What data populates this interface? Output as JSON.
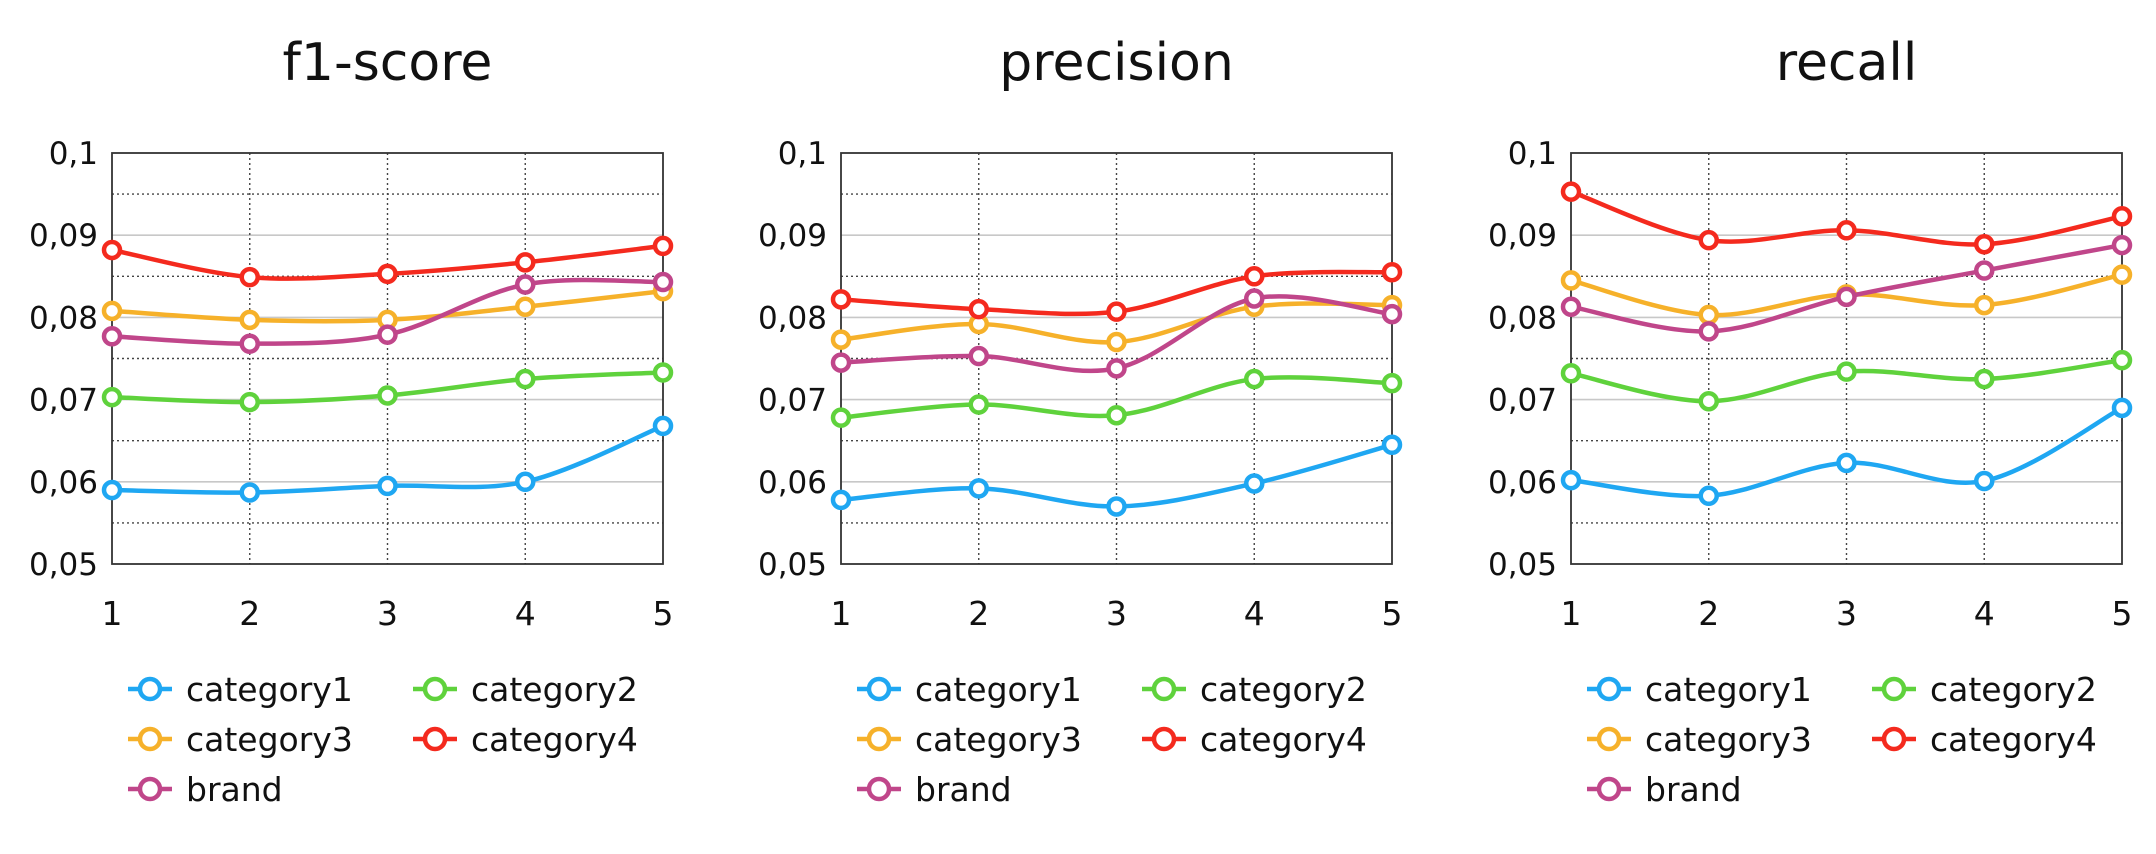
{
  "chart_data": [
    {
      "type": "line",
      "title": "f1-score",
      "xlabel": "",
      "ylabel": "",
      "x": [
        1,
        2,
        3,
        4,
        5
      ],
      "x_tick_labels": [
        "1",
        "2",
        "3",
        "4",
        "5"
      ],
      "ylim": [
        0.05,
        0.1
      ],
      "y_ticks": [
        0.05,
        0.06,
        0.07,
        0.08,
        0.09,
        0.1
      ],
      "y_tick_labels": [
        "0,05",
        "0,06",
        "0,07",
        "0,08",
        "0,09",
        "0,1"
      ],
      "grid": true,
      "legend_position": "bottom",
      "series": [
        {
          "name": "category1",
          "color": "#1fa7f2",
          "values": [
            0.059,
            0.0587,
            0.0595,
            0.06,
            0.0668
          ]
        },
        {
          "name": "category2",
          "color": "#5fd23c",
          "values": [
            0.0703,
            0.0697,
            0.0705,
            0.0725,
            0.0733
          ]
        },
        {
          "name": "category3",
          "color": "#f6b12a",
          "values": [
            0.0808,
            0.0797,
            0.0797,
            0.0813,
            0.0832
          ]
        },
        {
          "name": "category4",
          "color": "#f42a1e",
          "values": [
            0.0882,
            0.0849,
            0.0853,
            0.0867,
            0.0887
          ]
        },
        {
          "name": "brand",
          "color": "#c0468a",
          "values": [
            0.0777,
            0.0768,
            0.0779,
            0.084,
            0.0843
          ]
        }
      ]
    },
    {
      "type": "line",
      "title": "precision",
      "xlabel": "",
      "ylabel": "",
      "x": [
        1,
        2,
        3,
        4,
        5
      ],
      "x_tick_labels": [
        "1",
        "2",
        "3",
        "4",
        "5"
      ],
      "ylim": [
        0.05,
        0.1
      ],
      "y_ticks": [
        0.05,
        0.06,
        0.07,
        0.08,
        0.09,
        0.1
      ],
      "y_tick_labels": [
        "0,05",
        "0,06",
        "0,07",
        "0,08",
        "0,09",
        "0,1"
      ],
      "grid": true,
      "legend_position": "bottom",
      "series": [
        {
          "name": "category1",
          "color": "#1fa7f2",
          "values": [
            0.0578,
            0.0592,
            0.057,
            0.0598,
            0.0645
          ]
        },
        {
          "name": "category2",
          "color": "#5fd23c",
          "values": [
            0.0678,
            0.0694,
            0.0681,
            0.0725,
            0.072
          ]
        },
        {
          "name": "category3",
          "color": "#f6b12a",
          "values": [
            0.0773,
            0.0792,
            0.077,
            0.0813,
            0.0815
          ]
        },
        {
          "name": "category4",
          "color": "#f42a1e",
          "values": [
            0.0822,
            0.081,
            0.0807,
            0.085,
            0.0855
          ]
        },
        {
          "name": "brand",
          "color": "#c0468a",
          "values": [
            0.0745,
            0.0753,
            0.0738,
            0.0823,
            0.0804
          ]
        }
      ]
    },
    {
      "type": "line",
      "title": "recall",
      "xlabel": "",
      "ylabel": "",
      "x": [
        1,
        2,
        3,
        4,
        5
      ],
      "x_tick_labels": [
        "1",
        "2",
        "3",
        "4",
        "5"
      ],
      "ylim": [
        0.05,
        0.1
      ],
      "y_ticks": [
        0.05,
        0.06,
        0.07,
        0.08,
        0.09,
        0.1
      ],
      "y_tick_labels": [
        "0,05",
        "0,06",
        "0,07",
        "0,08",
        "0,09",
        "0,1"
      ],
      "grid": true,
      "legend_position": "bottom",
      "series": [
        {
          "name": "category1",
          "color": "#1fa7f2",
          "values": [
            0.0602,
            0.0583,
            0.0623,
            0.0601,
            0.069
          ]
        },
        {
          "name": "category2",
          "color": "#5fd23c",
          "values": [
            0.0732,
            0.0698,
            0.0734,
            0.0725,
            0.0748
          ]
        },
        {
          "name": "category3",
          "color": "#f6b12a",
          "values": [
            0.0845,
            0.0803,
            0.0828,
            0.0815,
            0.0852
          ]
        },
        {
          "name": "category4",
          "color": "#f42a1e",
          "values": [
            0.0953,
            0.0894,
            0.0906,
            0.0889,
            0.0923
          ]
        },
        {
          "name": "brand",
          "color": "#c0468a",
          "values": [
            0.0813,
            0.0783,
            0.0825,
            0.0857,
            0.0888
          ]
        }
      ]
    }
  ]
}
